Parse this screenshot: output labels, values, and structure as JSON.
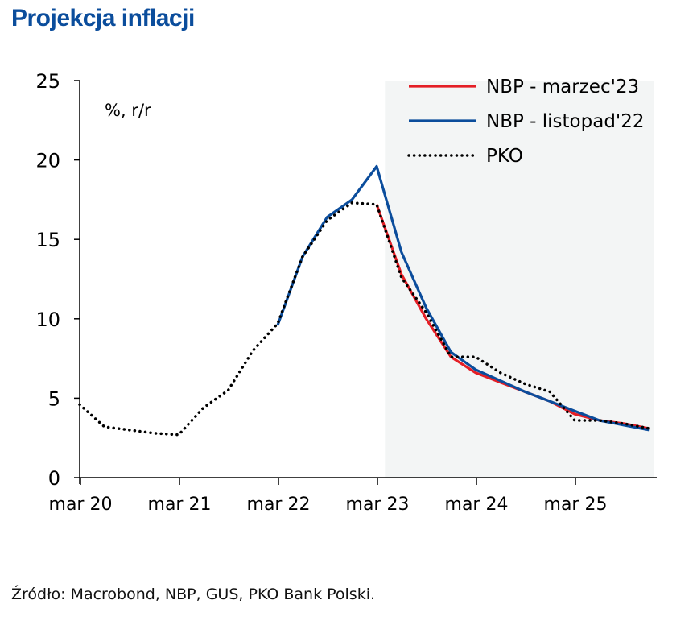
{
  "title": "Projekcja inflacji",
  "source": "Źródło: Macrobond, NBP, GUS, PKO Bank Polski.",
  "chart_data": {
    "type": "line",
    "title": "Projekcja inflacji",
    "unit_label": "%, r/r",
    "ylim": [
      0,
      25
    ],
    "yticks": [
      0,
      5,
      10,
      15,
      20,
      25
    ],
    "xticks": [
      "mar 20",
      "mar 21",
      "mar 22",
      "mar 23",
      "mar 24",
      "mar 25"
    ],
    "grid": false,
    "legend_position": "top-right",
    "projection_shading_from": "mar 23",
    "series": [
      {
        "name": "NBP - marzec'23",
        "color": "#e41f26",
        "style": "solid",
        "x": [
          "2023-03",
          "2023-06",
          "2023-09",
          "2023-12",
          "2024-03",
          "2024-06",
          "2024-09",
          "2024-12",
          "2025-03",
          "2025-06",
          "2025-09",
          "2025-12"
        ],
        "y": [
          17.2,
          12.8,
          10.0,
          7.6,
          6.6,
          6.0,
          5.4,
          4.8,
          4.0,
          3.6,
          3.4,
          3.1
        ]
      },
      {
        "name": "NBP - listopad'22",
        "color": "#0b4d9c",
        "style": "solid",
        "x": [
          "2022-03",
          "2022-06",
          "2022-09",
          "2022-12",
          "2023-03",
          "2023-06",
          "2023-09",
          "2023-12",
          "2024-03",
          "2024-06",
          "2024-09",
          "2024-12",
          "2025-03",
          "2025-06",
          "2025-09",
          "2025-12"
        ],
        "y": [
          9.6,
          13.9,
          16.4,
          17.5,
          19.6,
          14.2,
          10.7,
          7.9,
          6.8,
          6.1,
          5.4,
          4.8,
          4.2,
          3.6,
          3.3,
          3.0
        ]
      },
      {
        "name": "PKO",
        "color": "#000000",
        "style": "dotted",
        "x": [
          "2020-03",
          "2020-06",
          "2020-09",
          "2020-12",
          "2021-03",
          "2021-06",
          "2021-09",
          "2021-12",
          "2022-03",
          "2022-06",
          "2022-09",
          "2022-12",
          "2023-03",
          "2023-06",
          "2023-09",
          "2023-12",
          "2024-03",
          "2024-06",
          "2024-09",
          "2024-12",
          "2025-03",
          "2025-06",
          "2025-09",
          "2025-12"
        ],
        "y": [
          4.6,
          3.2,
          3.0,
          2.8,
          2.7,
          4.4,
          5.5,
          8.0,
          9.7,
          13.9,
          16.2,
          17.3,
          17.2,
          12.6,
          10.4,
          7.6,
          7.6,
          6.6,
          5.9,
          5.4,
          3.6,
          3.6,
          3.4,
          3.1
        ]
      }
    ]
  }
}
